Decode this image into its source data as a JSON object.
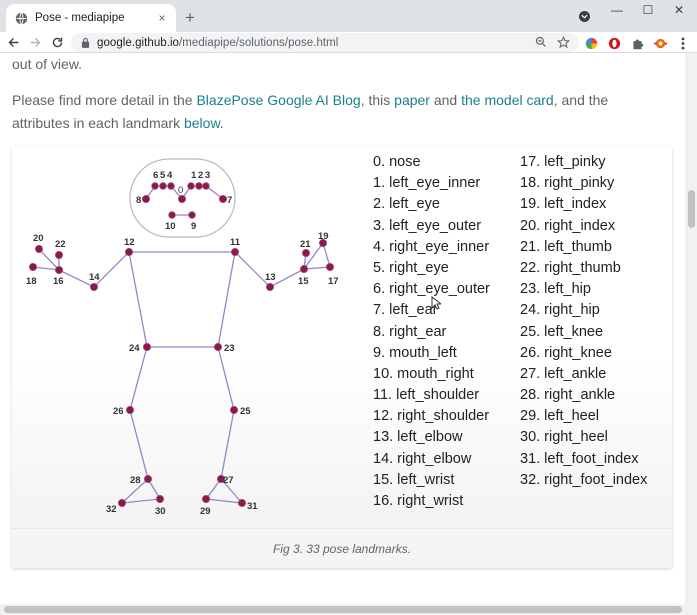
{
  "browser": {
    "tab": {
      "title": "Pose - mediapipe",
      "close_glyph": "×"
    },
    "new_tab_glyph": "+",
    "window_controls": {
      "minimize": "—",
      "maximize": "☐",
      "close": "✕"
    },
    "address": {
      "host": "google.github.io",
      "path": "/mediapipe/solutions/pose.html"
    }
  },
  "page": {
    "intro_tail": "out of view.",
    "detail": {
      "part1": "Please find more detail in the ",
      "link_blog": "BlazePose Google AI Blog",
      "part2": ", this ",
      "link_paper": "paper",
      "part3": " and ",
      "link_card": "the model card",
      "part4": ", and the",
      "line2": "attributes in each landmark ",
      "link_below": "below",
      "line2_end": "."
    },
    "figure": {
      "caption": "Fig 3. 33 pose landmarks.",
      "landmarks_col1": [
        "0. nose",
        "1. left_eye_inner",
        "2. left_eye",
        "3. left_eye_outer",
        "4. right_eye_inner",
        "5. right_eye",
        "6. right_eye_outer",
        "7. left_ear",
        "8. right_ear",
        "9. mouth_left",
        "10. mouth_right",
        "11. left_shoulder",
        "12. right_shoulder",
        "13. left_elbow",
        "14. right_elbow",
        "15. left_wrist",
        "16. right_wrist"
      ],
      "landmarks_col2": [
        "17. left_pinky",
        "18. right_pinky",
        "19. left_index",
        "20. right_index",
        "21. left_thumb",
        "22. right_thumb",
        "23. left_hip",
        "24. right_hip",
        "25. left_knee",
        "26. right_knee",
        "27. left_ankle",
        "28. right_ankle",
        "29. left_heel",
        "30. right_heel",
        "31. left_foot_index",
        "32. right_foot_index"
      ]
    }
  },
  "colors": {
    "link": "#1a7f8e",
    "joint": "#8b1a4a",
    "bone": "#8f86cf"
  }
}
